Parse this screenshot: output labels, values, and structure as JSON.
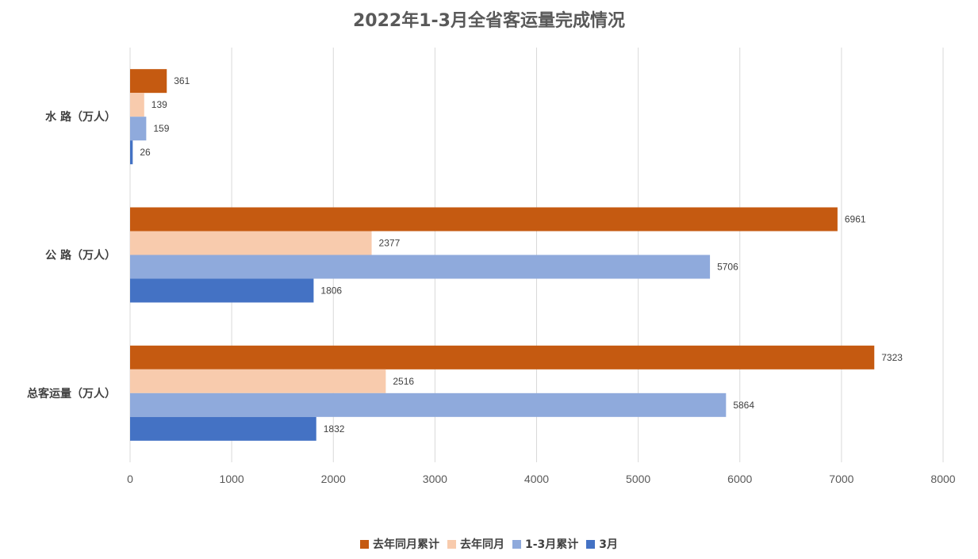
{
  "chart_data": {
    "type": "bar",
    "orientation": "horizontal",
    "title": "2022年1-3月全省客运量完成情况",
    "categories": [
      "水 路（万人）",
      "公 路（万人）",
      "总客运量（万人）"
    ],
    "series": [
      {
        "name": "去年同月累计",
        "color": "#C55A11",
        "values": [
          361,
          6961,
          7323
        ]
      },
      {
        "name": "去年同月",
        "color": "#F8CBAD",
        "values": [
          139,
          2377,
          2516
        ]
      },
      {
        "name": "1-3月累计",
        "color": "#8FAADC",
        "values": [
          159,
          5706,
          5864
        ]
      },
      {
        "name": "3月",
        "color": "#4472C4",
        "values": [
          26,
          1806,
          1832
        ]
      }
    ],
    "xlim": [
      0,
      8000
    ],
    "xticks": [
      0,
      1000,
      2000,
      3000,
      4000,
      5000,
      6000,
      7000,
      8000
    ],
    "grid": true,
    "legend_position": "bottom",
    "data_labels": true
  }
}
